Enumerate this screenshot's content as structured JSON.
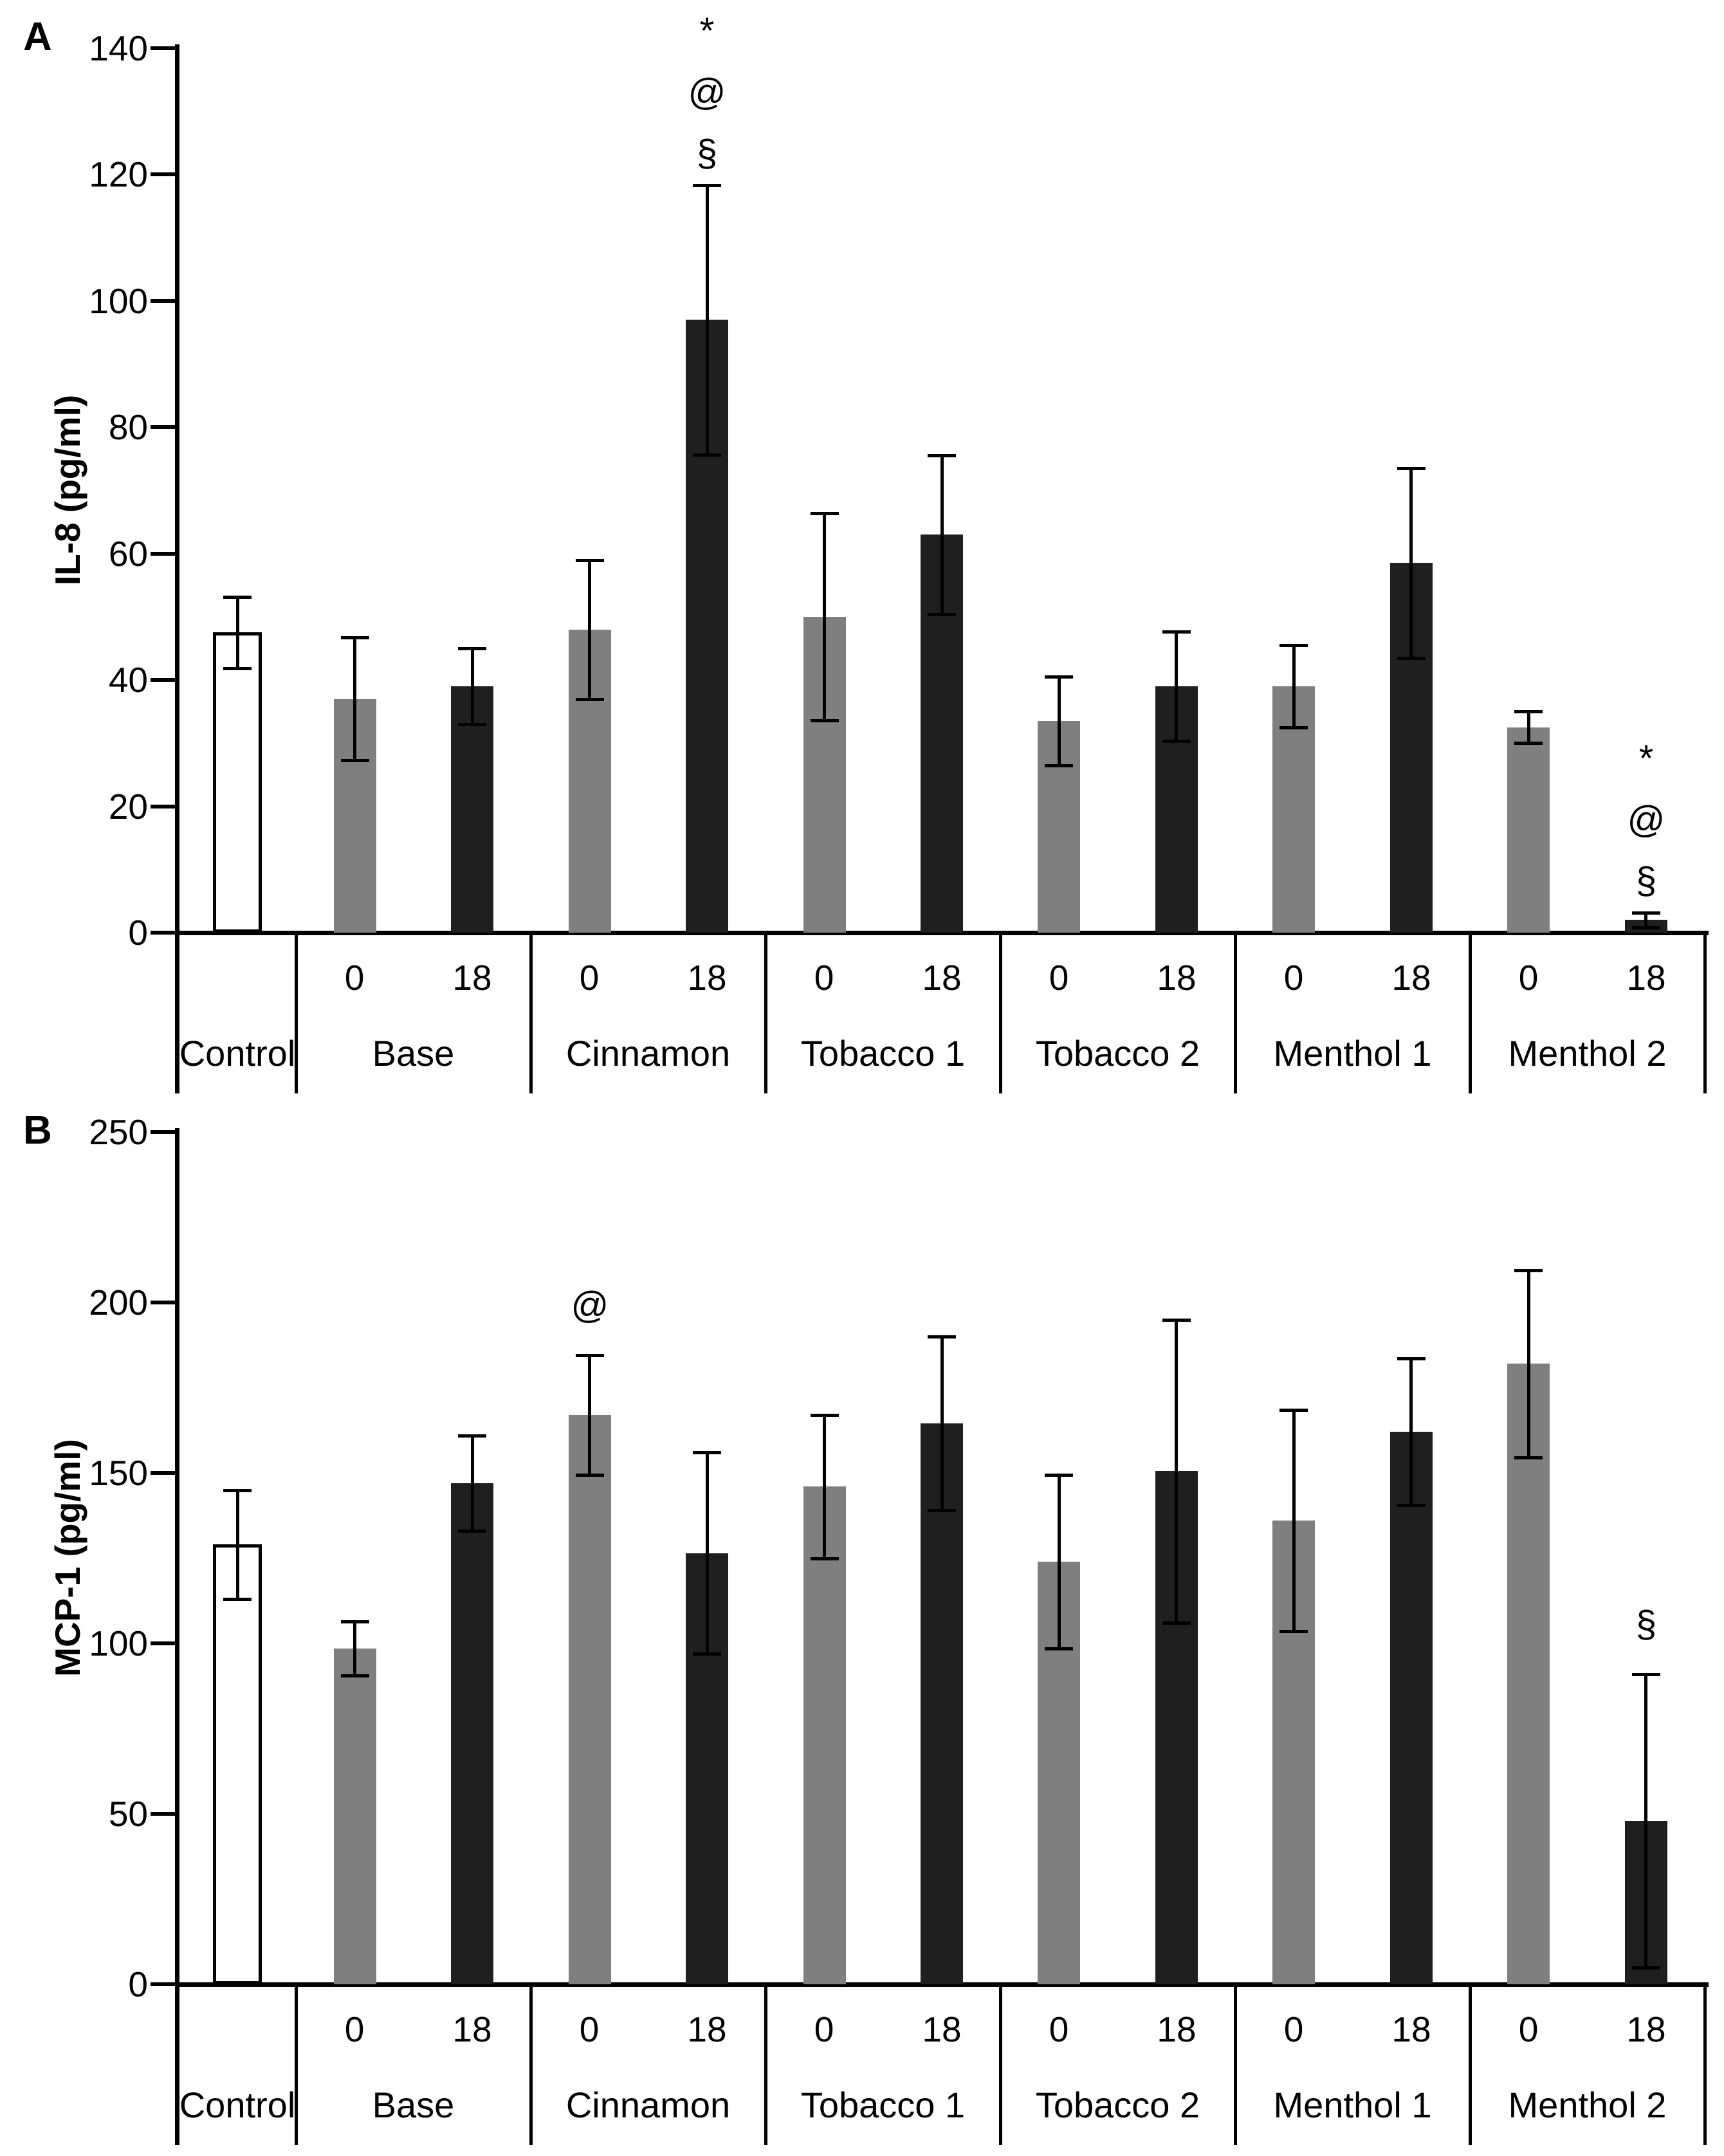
{
  "figure": {
    "description": "Two-panel bar chart of cytokine secretion (IL-8 and MCP-1) for e-liquid flavor exposures at 0 and 18 mg/ml nicotine",
    "significance_symbols": [
      "*",
      "@",
      "§"
    ],
    "colors": {
      "control_fill": "#ffffff",
      "bar_gray": "#7f7f7f",
      "bar_black": "#1f1f1f",
      "axis": "#000000",
      "background": "#ffffff"
    }
  },
  "chart_data": [
    {
      "type": "bar",
      "panel_label": "A",
      "ylabel": "IL-8 (pg/ml)",
      "xlabel": "",
      "ylim": [
        0,
        140
      ],
      "yticks": [
        0,
        20,
        40,
        60,
        80,
        100,
        120,
        140
      ],
      "grid": false,
      "legend": "none",
      "error_bars": true,
      "groups": [
        {
          "label": "Control",
          "bars": [
            {
              "sublabel": "",
              "value": 47.5,
              "err": 5.7,
              "style": "control",
              "annotations": []
            }
          ]
        },
        {
          "label": "Base",
          "bars": [
            {
              "sublabel": "0",
              "value": 37,
              "err": 9.7,
              "style": "gray",
              "annotations": []
            },
            {
              "sublabel": "18",
              "value": 39,
              "err": 6,
              "style": "black",
              "annotations": []
            }
          ]
        },
        {
          "label": "Cinnamon",
          "bars": [
            {
              "sublabel": "0",
              "value": 48,
              "err": 11,
              "style": "gray",
              "annotations": []
            },
            {
              "sublabel": "18",
              "value": 97,
              "err": 21.3,
              "style": "black",
              "annotations": [
                "*",
                "@",
                "§"
              ]
            }
          ]
        },
        {
          "label": "Tobacco 1",
          "bars": [
            {
              "sublabel": "0",
              "value": 50,
              "err": 16.4,
              "style": "gray",
              "annotations": []
            },
            {
              "sublabel": "18",
              "value": 63,
              "err": 12.6,
              "style": "black",
              "annotations": []
            }
          ]
        },
        {
          "label": "Tobacco 2",
          "bars": [
            {
              "sublabel": "0",
              "value": 33.5,
              "err": 7,
              "style": "gray",
              "annotations": []
            },
            {
              "sublabel": "18",
              "value": 39,
              "err": 8.7,
              "style": "black",
              "annotations": []
            }
          ]
        },
        {
          "label": "Menthol 1",
          "bars": [
            {
              "sublabel": "0",
              "value": 39,
              "err": 6.5,
              "style": "gray",
              "annotations": []
            },
            {
              "sublabel": "18",
              "value": 58.5,
              "err": 15,
              "style": "black",
              "annotations": []
            }
          ]
        },
        {
          "label": "Menthol 2",
          "bars": [
            {
              "sublabel": "0",
              "value": 32.5,
              "err": 2.5,
              "style": "gray",
              "annotations": []
            },
            {
              "sublabel": "18",
              "value": 2,
              "err": 1.2,
              "style": "black",
              "annotations": [
                "*",
                "@",
                "§"
              ]
            }
          ]
        }
      ]
    },
    {
      "type": "bar",
      "panel_label": "B",
      "ylabel": "MCP-1 (pg/ml)",
      "xlabel": "",
      "ylim": [
        0,
        250
      ],
      "yticks": [
        0,
        50,
        100,
        150,
        200,
        250
      ],
      "grid": false,
      "legend": "none",
      "error_bars": true,
      "groups": [
        {
          "label": "Control",
          "bars": [
            {
              "sublabel": "",
              "value": 129,
              "err": 16,
              "style": "control",
              "annotations": []
            }
          ]
        },
        {
          "label": "Base",
          "bars": [
            {
              "sublabel": "0",
              "value": 98.5,
              "err": 8,
              "style": "gray",
              "annotations": []
            },
            {
              "sublabel": "18",
              "value": 147,
              "err": 14,
              "style": "black",
              "annotations": []
            }
          ]
        },
        {
          "label": "Cinnamon",
          "bars": [
            {
              "sublabel": "0",
              "value": 167,
              "err": 17.5,
              "style": "gray",
              "annotations": [
                "@"
              ]
            },
            {
              "sublabel": "18",
              "value": 126.5,
              "err": 29.5,
              "style": "black",
              "annotations": []
            }
          ]
        },
        {
          "label": "Tobacco 1",
          "bars": [
            {
              "sublabel": "0",
              "value": 146,
              "err": 21,
              "style": "gray",
              "annotations": []
            },
            {
              "sublabel": "18",
              "value": 164.5,
              "err": 25.5,
              "style": "black",
              "annotations": []
            }
          ]
        },
        {
          "label": "Tobacco 2",
          "bars": [
            {
              "sublabel": "0",
              "value": 124,
              "err": 25.5,
              "style": "gray",
              "annotations": []
            },
            {
              "sublabel": "18",
              "value": 150.5,
              "err": 44.5,
              "style": "black",
              "annotations": []
            }
          ]
        },
        {
          "label": "Menthol 1",
          "bars": [
            {
              "sublabel": "0",
              "value": 136,
              "err": 32.5,
              "style": "gray",
              "annotations": []
            },
            {
              "sublabel": "18",
              "value": 162,
              "err": 21.5,
              "style": "black",
              "annotations": []
            }
          ]
        },
        {
          "label": "Menthol 2",
          "bars": [
            {
              "sublabel": "0",
              "value": 182,
              "err": 27.5,
              "style": "gray",
              "annotations": []
            },
            {
              "sublabel": "18",
              "value": 48,
              "err": 43,
              "style": "black",
              "annotations": [
                "§"
              ]
            }
          ]
        }
      ]
    }
  ]
}
